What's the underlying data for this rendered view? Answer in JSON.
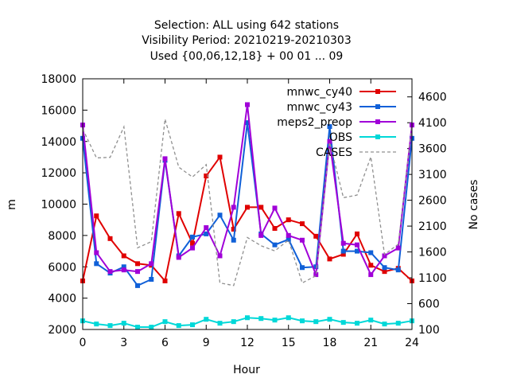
{
  "chart_data": {
    "type": "line",
    "title_lines": [
      "Selection: ALL using   642 stations",
      "Visibility   Period: 20210219-20210303",
      "Used {00,06,12,18} + 00 01 ... 09"
    ],
    "xlabel": "Hour",
    "ylabel": "m",
    "y2label": "No cases",
    "xlim": [
      0,
      24
    ],
    "ylim": [
      2000,
      18000
    ],
    "y2lim": [
      100,
      4950
    ],
    "x_ticks": [
      "0",
      "3",
      "6",
      "9",
      "12",
      "15",
      "18",
      "21",
      "24"
    ],
    "y_ticks": [
      "2000",
      "4000",
      "6000",
      "8000",
      "10000",
      "12000",
      "14000",
      "16000",
      "18000"
    ],
    "y2_ticks": [
      "100",
      "600",
      "1100",
      "1600",
      "2100",
      "2600",
      "3100",
      "3600",
      "4100",
      "4600"
    ],
    "legend_position": "top-right",
    "x": [
      0,
      1,
      2,
      3,
      4,
      5,
      6,
      7,
      8,
      9,
      10,
      11,
      12,
      13,
      14,
      15,
      16,
      17,
      18,
      19,
      20,
      21,
      22,
      23,
      24
    ],
    "series": [
      {
        "name": "mnwc_cy40",
        "color": "#e00000",
        "axis": "y1",
        "style": "solid",
        "values": [
          5100,
          9250,
          7800,
          6700,
          6200,
          6100,
          5100,
          9400,
          7500,
          11800,
          13000,
          8400,
          9800,
          9800,
          8450,
          9000,
          8750,
          7950,
          6500,
          6800,
          8100,
          6100,
          5700,
          5900,
          5100
        ]
      },
      {
        "name": "mnwc_cy43",
        "color": "#1060d8",
        "axis": "y1",
        "style": "solid",
        "values": [
          14200,
          6200,
          5600,
          6000,
          4800,
          5200,
          12800,
          6700,
          7900,
          8100,
          9300,
          7700,
          15200,
          8100,
          7400,
          7750,
          5950,
          6000,
          14950,
          7000,
          7000,
          6900,
          5950,
          5800,
          14200
        ]
      },
      {
        "name": "meps2_preop",
        "color": "#a000d8",
        "axis": "y1",
        "style": "solid",
        "values": [
          15050,
          6900,
          5700,
          5800,
          5700,
          6200,
          12900,
          6600,
          7200,
          8500,
          6700,
          9800,
          16350,
          8000,
          9750,
          8000,
          7700,
          5500,
          14000,
          7500,
          7400,
          5500,
          6700,
          7200,
          15050
        ]
      },
      {
        "name": "OBS",
        "color": "#00d8d8",
        "axis": "y1",
        "style": "solid",
        "values": [
          2550,
          2350,
          2250,
          2400,
          2150,
          2150,
          2500,
          2250,
          2300,
          2650,
          2400,
          2500,
          2750,
          2700,
          2600,
          2750,
          2550,
          2500,
          2650,
          2450,
          2400,
          2600,
          2350,
          2400,
          2550
        ]
      },
      {
        "name": "CASES",
        "color": "#909090",
        "axis": "y2",
        "style": "dashed",
        "values": [
          3980,
          3420,
          3430,
          4020,
          1680,
          1800,
          4170,
          3240,
          3050,
          3290,
          1000,
          950,
          1880,
          1720,
          1620,
          1830,
          1000,
          1140,
          3720,
          2650,
          2700,
          3440,
          1550,
          1750,
          4050
        ]
      }
    ]
  }
}
